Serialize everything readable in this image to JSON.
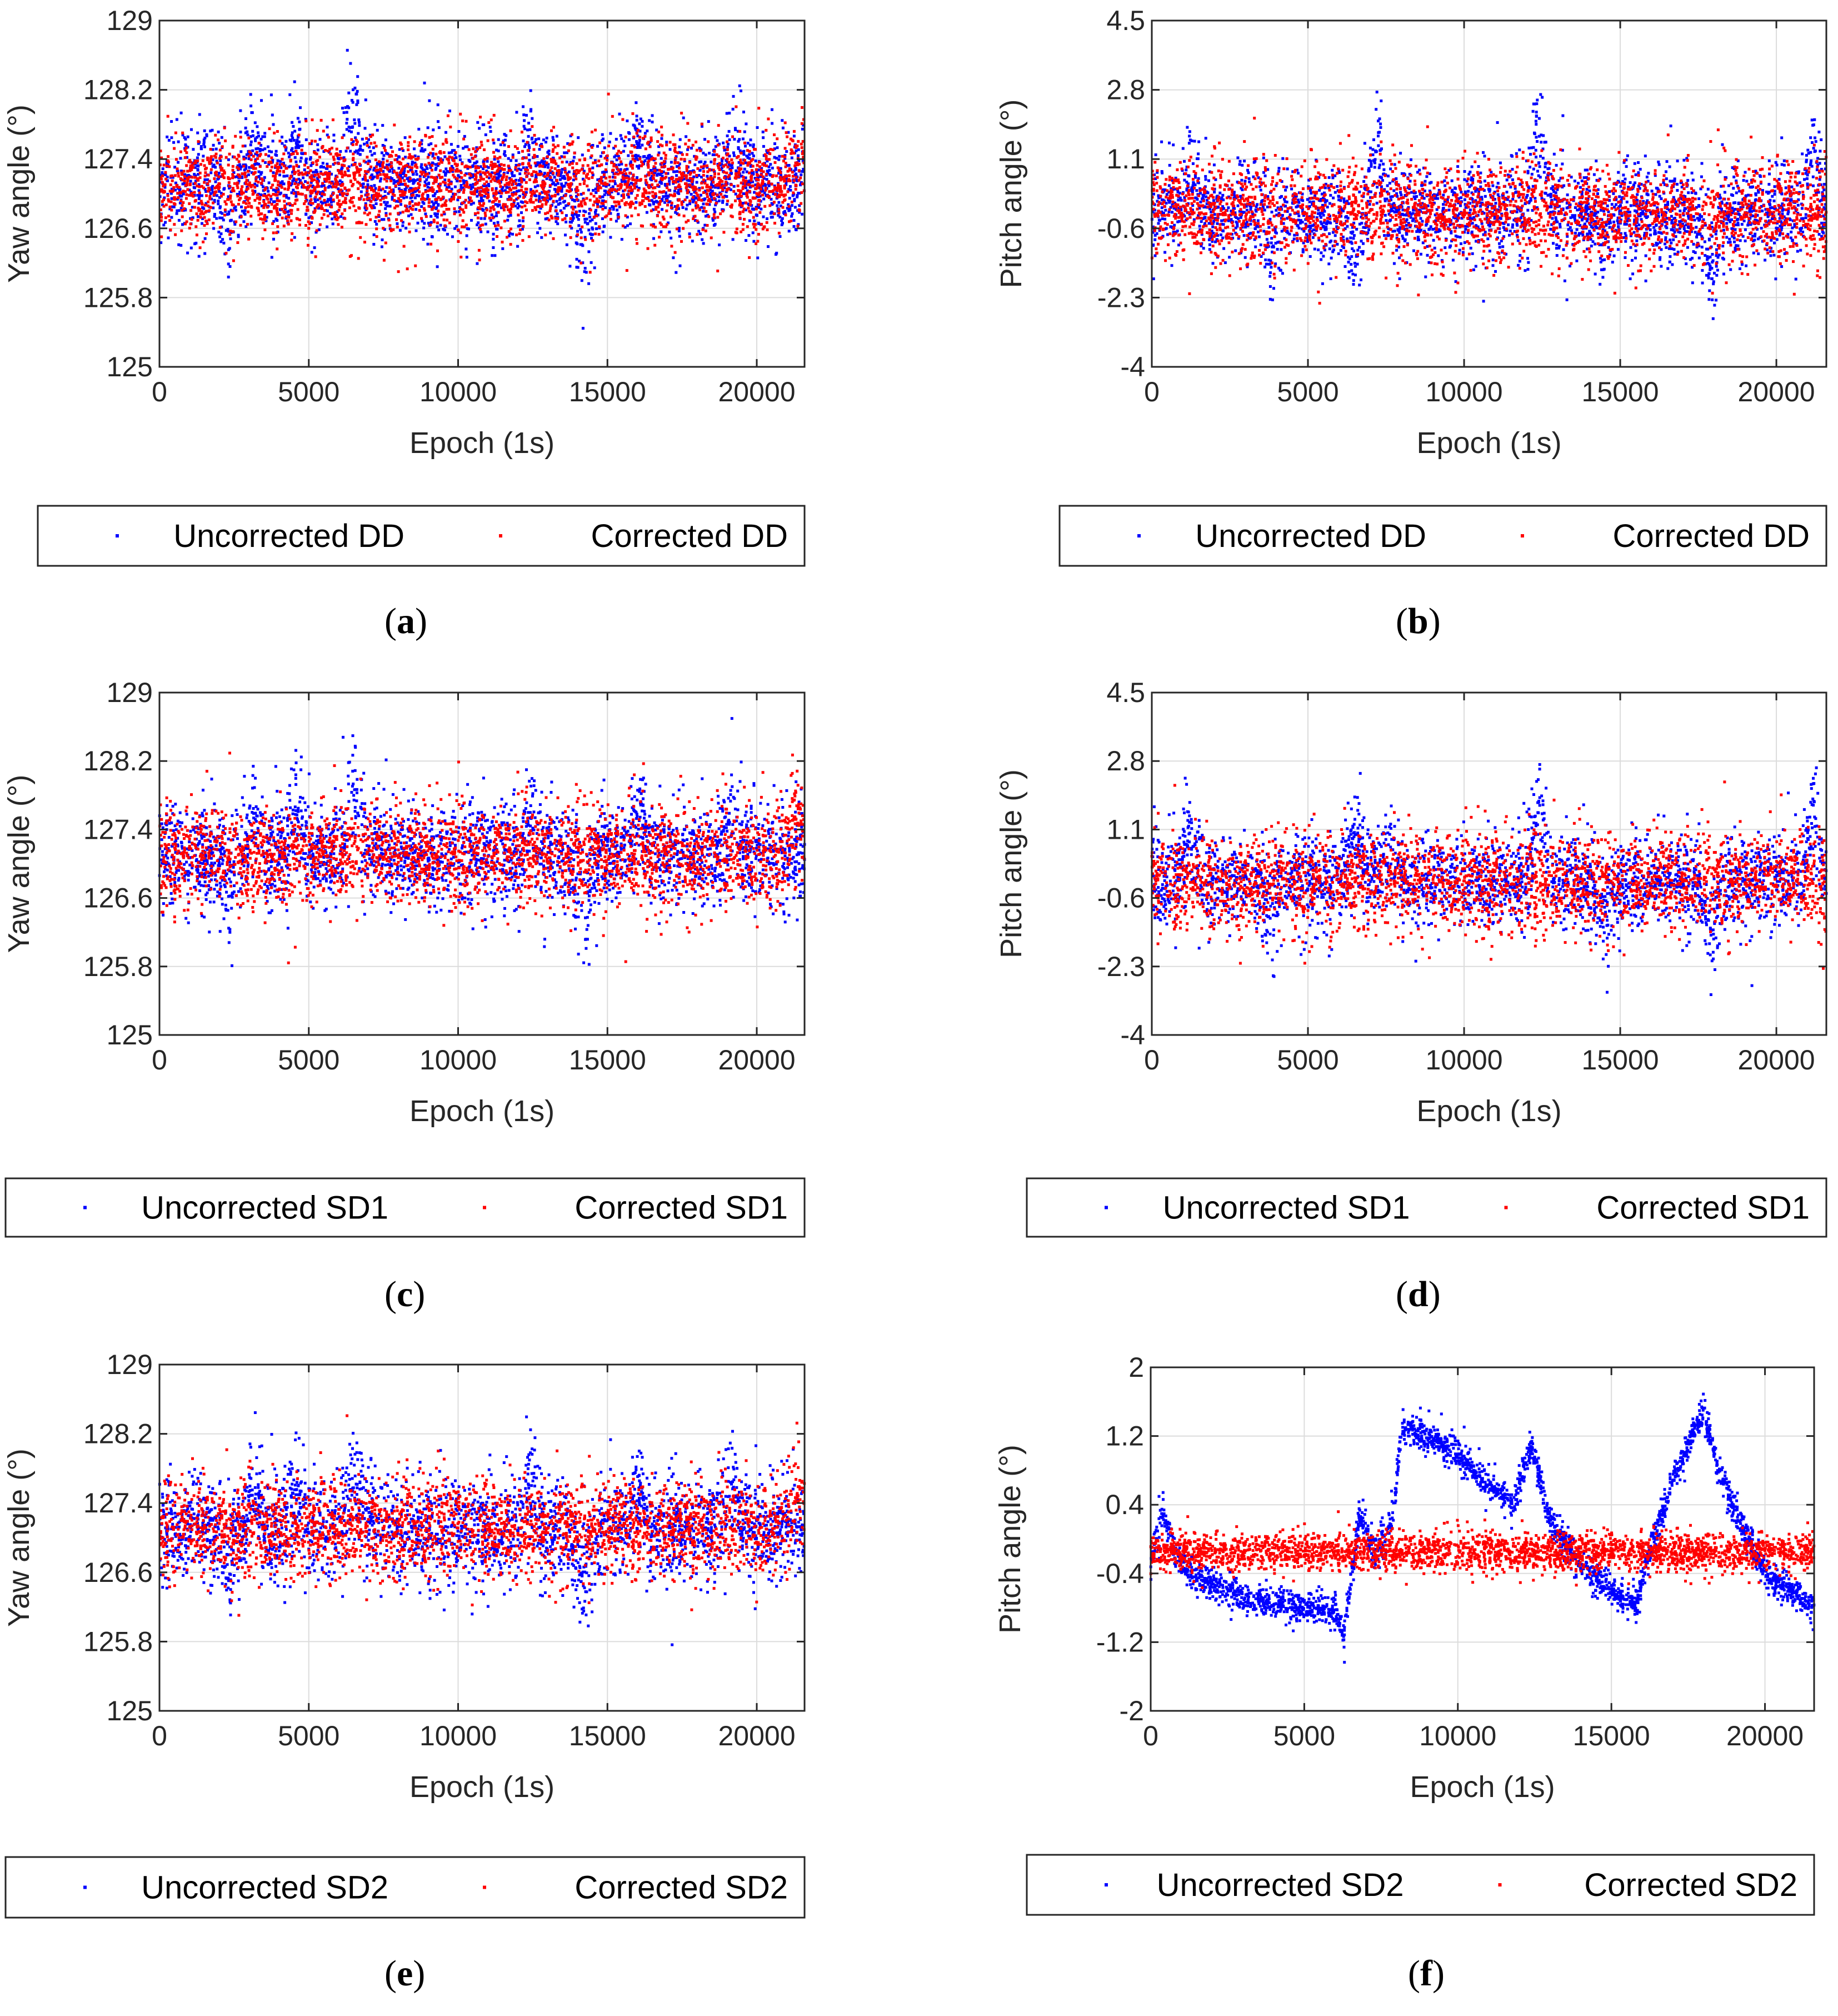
{
  "colors": {
    "uncorrected": "#0000ff",
    "corrected": "#ff0000",
    "grid": "#dcdcdc",
    "axis": "#262626"
  },
  "chart_data": [
    {
      "id": "a",
      "caption_letter": "a",
      "type": "scatter",
      "ylabel": "Yaw angle (°)",
      "xlabel": "Epoch (1s)",
      "xlim": [
        0,
        21600
      ],
      "ylim": [
        125,
        129
      ],
      "xticks": [
        0,
        5000,
        10000,
        15000,
        20000
      ],
      "xtick_labels": [
        "0",
        "5000",
        "10000",
        "15000",
        "20000"
      ],
      "yticks": [
        125,
        125.8,
        126.6,
        127.4,
        128.2,
        129
      ],
      "ytick_labels": [
        "125",
        "125.8",
        "126.6",
        "127.4",
        "128.2",
        "129"
      ],
      "series": [
        {
          "name": "Uncorrected DD",
          "color": "#0000ff",
          "center": 127.1,
          "noise": 0.38,
          "excursions": [
            [
              3200,
              250,
              0.5
            ],
            [
              4600,
              220,
              0.6
            ],
            [
              6500,
              300,
              0.9
            ],
            [
              12400,
              200,
              0.5
            ],
            [
              14200,
              300,
              -0.7
            ],
            [
              16000,
              300,
              0.6
            ],
            [
              19200,
              300,
              0.5
            ],
            [
              2300,
              150,
              -0.6
            ]
          ]
        },
        {
          "name": "Corrected DD",
          "color": "#ff0000",
          "center": 127.1,
          "noise": 0.36,
          "excursions": [
            [
              21300,
              300,
              0.4
            ]
          ]
        }
      ]
    },
    {
      "id": "b",
      "caption_letter": "b",
      "type": "scatter",
      "ylabel": "Pitch angle (°)",
      "xlabel": "Epoch (1s)",
      "xlim": [
        0,
        21600
      ],
      "ylim": [
        -4,
        4.5
      ],
      "xticks": [
        0,
        5000,
        10000,
        15000,
        20000
      ],
      "xtick_labels": [
        "0",
        "5000",
        "10000",
        "15000",
        "20000"
      ],
      "yticks": [
        -4,
        -2.3,
        -0.6,
        1.1,
        2.8,
        4.5
      ],
      "ytick_labels": [
        "-4",
        "-2.3",
        "-0.6",
        "1.1",
        "2.8",
        "4.5"
      ],
      "series": [
        {
          "name": "Uncorrected DD",
          "color": "#0000ff",
          "center": -0.2,
          "noise": 0.75,
          "excursions": [
            [
              1200,
              300,
              1.3
            ],
            [
              6500,
              300,
              -1.2
            ],
            [
              7200,
              300,
              2.0
            ],
            [
              12400,
              250,
              2.4
            ],
            [
              17900,
              300,
              -1.5
            ],
            [
              21200,
              250,
              1.8
            ],
            [
              14500,
              250,
              -0.9
            ],
            [
              3800,
              250,
              -1.0
            ]
          ]
        },
        {
          "name": "Corrected DD",
          "color": "#ff0000",
          "center": -0.2,
          "noise": 0.8,
          "excursions": []
        }
      ]
    },
    {
      "id": "c",
      "caption_letter": "c",
      "type": "scatter",
      "ylabel": "Yaw angle (°)",
      "xlabel": "Epoch (1s)",
      "xlim": [
        0,
        21600
      ],
      "ylim": [
        125,
        129
      ],
      "xticks": [
        0,
        5000,
        10000,
        15000,
        20000
      ],
      "xtick_labels": [
        "0",
        "5000",
        "10000",
        "15000",
        "20000"
      ],
      "yticks": [
        125,
        125.8,
        126.6,
        127.4,
        128.2,
        129
      ],
      "ytick_labels": [
        "125",
        "125.8",
        "126.6",
        "127.4",
        "128.2",
        "129"
      ],
      "series": [
        {
          "name": "Uncorrected SD1",
          "color": "#0000ff",
          "center": 127.1,
          "noise": 0.38,
          "excursions": [
            [
              3200,
              250,
              0.5
            ],
            [
              4600,
              220,
              0.6
            ],
            [
              6500,
              300,
              0.9
            ],
            [
              12400,
              200,
              0.5
            ],
            [
              14200,
              300,
              -0.7
            ],
            [
              16000,
              300,
              0.6
            ],
            [
              19200,
              300,
              0.5
            ],
            [
              2300,
              150,
              -0.6
            ]
          ]
        },
        {
          "name": "Corrected SD1",
          "color": "#ff0000",
          "center": 127.1,
          "noise": 0.37,
          "excursions": [
            [
              21300,
              300,
              0.5
            ]
          ]
        }
      ]
    },
    {
      "id": "d",
      "caption_letter": "d",
      "type": "scatter",
      "ylabel": "Pitch angle (°)",
      "xlabel": "Epoch (1s)",
      "xlim": [
        0,
        21600
      ],
      "ylim": [
        -4,
        4.5
      ],
      "xticks": [
        0,
        5000,
        10000,
        15000,
        20000
      ],
      "xtick_labels": [
        "0",
        "5000",
        "10000",
        "15000",
        "20000"
      ],
      "yticks": [
        -4,
        -2.3,
        -0.6,
        1.1,
        2.8,
        4.5
      ],
      "ytick_labels": [
        "-4",
        "-2.3",
        "-0.6",
        "1.1",
        "2.8",
        "4.5"
      ],
      "series": [
        {
          "name": "Uncorrected SD1",
          "color": "#0000ff",
          "center": -0.2,
          "noise": 0.72,
          "excursions": [
            [
              1200,
              300,
              1.3
            ],
            [
              6500,
              300,
              1.4
            ],
            [
              7600,
              300,
              1.2
            ],
            [
              12400,
              250,
              2.3
            ],
            [
              17900,
              300,
              -1.5
            ],
            [
              21200,
              250,
              2.0
            ],
            [
              14500,
              250,
              -0.9
            ],
            [
              3800,
              250,
              -1.0
            ]
          ]
        },
        {
          "name": "Corrected SD1",
          "color": "#ff0000",
          "center": -0.2,
          "noise": 0.78,
          "excursions": []
        }
      ]
    },
    {
      "id": "e",
      "caption_letter": "e",
      "type": "scatter",
      "ylabel": "Yaw angle (°)",
      "xlabel": "Epoch (1s)",
      "xlim": [
        0,
        21600
      ],
      "ylim": [
        125,
        129
      ],
      "xticks": [
        0,
        5000,
        10000,
        15000,
        20000
      ],
      "xtick_labels": [
        "0",
        "5000",
        "10000",
        "15000",
        "20000"
      ],
      "yticks": [
        125,
        125.8,
        126.6,
        127.4,
        128.2,
        129
      ],
      "ytick_labels": [
        "125",
        "125.8",
        "126.6",
        "127.4",
        "128.2",
        "129"
      ],
      "series": [
        {
          "name": "Uncorrected SD2",
          "color": "#0000ff",
          "center": 127.1,
          "noise": 0.38,
          "excursions": [
            [
              3200,
              250,
              0.5
            ],
            [
              4600,
              220,
              0.6
            ],
            [
              6500,
              300,
              0.8
            ],
            [
              12400,
              200,
              0.6
            ],
            [
              14200,
              300,
              -0.7
            ],
            [
              16000,
              300,
              0.6
            ],
            [
              19200,
              300,
              0.5
            ],
            [
              2300,
              150,
              -0.6
            ]
          ]
        },
        {
          "name": "Corrected SD2",
          "color": "#ff0000",
          "center": 127.1,
          "noise": 0.36,
          "excursions": [
            [
              21300,
              300,
              0.4
            ]
          ]
        }
      ]
    },
    {
      "id": "f",
      "caption_letter": "f",
      "type": "scatter",
      "ylabel": "Pitch angle (°)",
      "xlabel": "Epoch (1s)",
      "xlim": [
        0,
        21600
      ],
      "ylim": [
        -2,
        2
      ],
      "xticks": [
        0,
        5000,
        10000,
        15000,
        20000
      ],
      "xtick_labels": [
        "0",
        "5000",
        "10000",
        "15000",
        "20000"
      ],
      "yticks": [
        -2,
        -1.2,
        -0.4,
        0.4,
        1.2,
        2
      ],
      "ytick_labels": [
        "-2",
        "-1.2",
        "-0.4",
        "0.4",
        "1.2",
        "2"
      ],
      "series": [
        {
          "name": "Uncorrected SD2",
          "color": "#0000ff",
          "center": -0.15,
          "noise": 0.12,
          "trend": [
            [
              0,
              -0.3
            ],
            [
              400,
              0.3
            ],
            [
              800,
              -0.2
            ],
            [
              1500,
              -0.45
            ],
            [
              3000,
              -0.7
            ],
            [
              4000,
              -0.75
            ],
            [
              5000,
              -0.8
            ],
            [
              6000,
              -0.85
            ],
            [
              6300,
              -1.1
            ],
            [
              6800,
              0.3
            ],
            [
              7300,
              -0.2
            ],
            [
              7800,
              0.1
            ],
            [
              8200,
              1.3
            ],
            [
              9000,
              1.2
            ],
            [
              10000,
              1.0
            ],
            [
              11000,
              0.6
            ],
            [
              11800,
              0.4
            ],
            [
              12400,
              1.1
            ],
            [
              13000,
              0.2
            ],
            [
              14000,
              -0.3
            ],
            [
              15000,
              -0.6
            ],
            [
              15800,
              -0.8
            ],
            [
              16200,
              -0.2
            ],
            [
              17000,
              0.7
            ],
            [
              18000,
              1.5
            ],
            [
              18500,
              0.8
            ],
            [
              19300,
              0.1
            ],
            [
              20000,
              -0.4
            ],
            [
              21600,
              -0.8
            ]
          ]
        },
        {
          "name": "Corrected SD2",
          "color": "#ff0000",
          "center": -0.15,
          "noise": 0.14,
          "excursions": []
        }
      ]
    }
  ]
}
